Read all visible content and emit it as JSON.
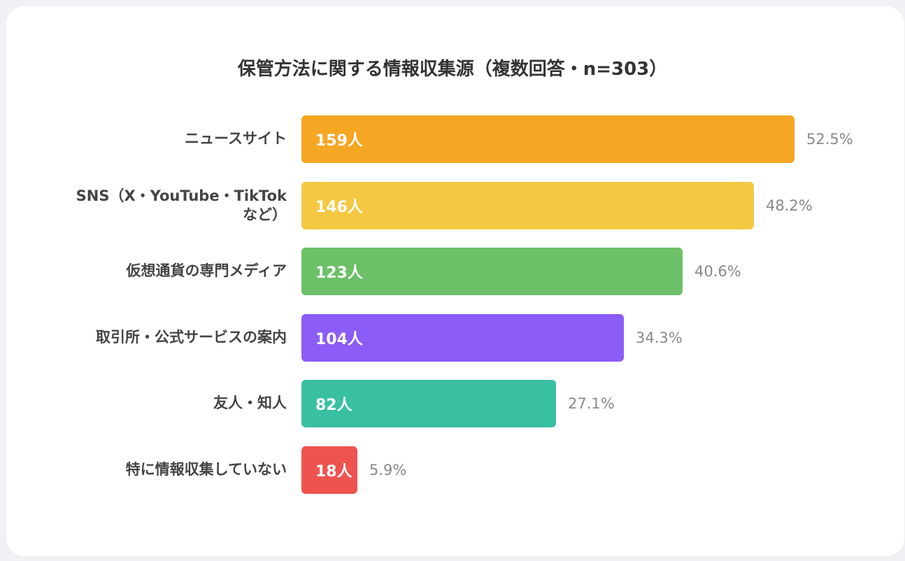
{
  "chart_data": {
    "type": "bar",
    "orientation": "horizontal",
    "title": "保管方法に関する情報収集源（複数回答・n=303）",
    "categories": [
      [
        "ニュースサイト"
      ],
      [
        "SNS（X・YouTube・TikTok",
        "など）"
      ],
      [
        "仮想通貨の専門メディア"
      ],
      [
        "取引所・公式サービスの案内"
      ],
      [
        "友人・知人"
      ],
      [
        "特に情報収集していない"
      ]
    ],
    "values": [
      159,
      146,
      123,
      104,
      82,
      18
    ],
    "value_labels": [
      "159人",
      "146人",
      "123人",
      "104人",
      "82人",
      "18人"
    ],
    "percent_labels": [
      "52.5%",
      "48.2%",
      "40.6%",
      "34.3%",
      "27.1%",
      "5.9%"
    ],
    "colors": [
      "#f5a623",
      "#f4c842",
      "#6cc067",
      "#8b5cf6",
      "#38c0a1",
      "#ef5350"
    ],
    "xlim": [
      0,
      159
    ],
    "grid": false,
    "legend": "none"
  }
}
